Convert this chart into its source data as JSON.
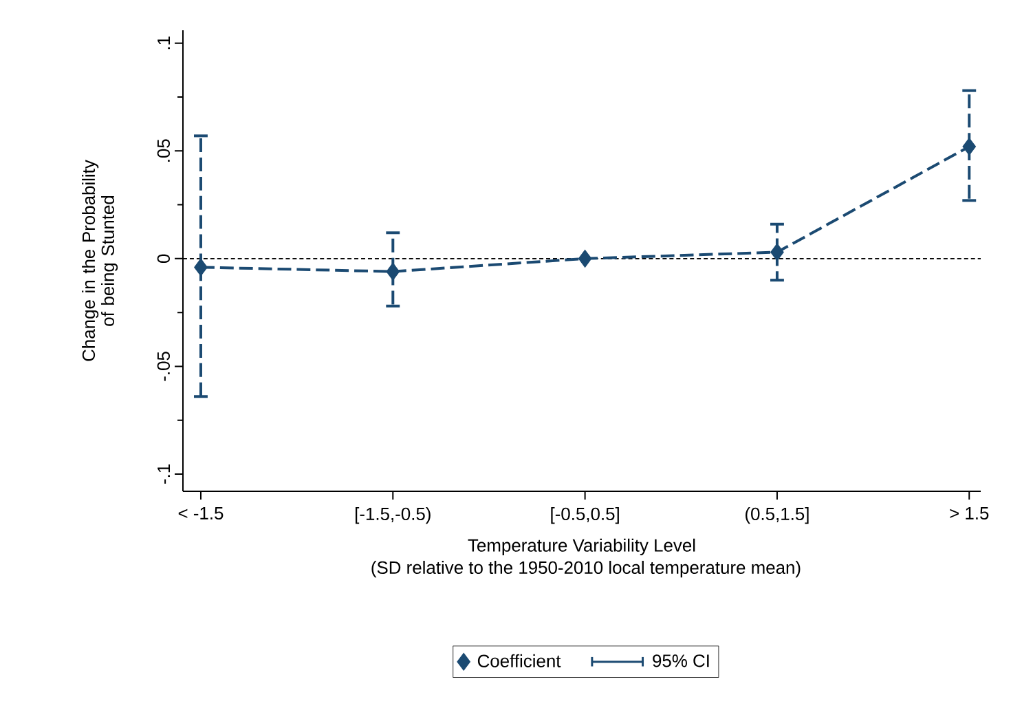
{
  "chart_data": {
    "type": "line",
    "xlabel": "Temperature Variability Level",
    "ylabel": "Change in the Probability of being Stunted",
    "annotations": [
      "(SD relative to the 1950-2010 local temperature mean)",
      "95% CI"
    ],
    "categories": [
      "< -1.5",
      "[-1.5,-0.5)",
      "[-0.5,0.5]",
      "(0.5,1.5]",
      "> 1.5"
    ],
    "series": [
      {
        "name": "Coefficient",
        "type": "line",
        "color": "#1b4a72",
        "marker": "diamond",
        "line_style": "dashed",
        "values": [
          -0.004,
          -0.006,
          0,
          0.003,
          0.052
        ],
        "errors": [
          [
            -0.064,
            0.057
          ],
          [
            -0.022,
            0.012
          ],
          null,
          [
            -0.01,
            0.016
          ],
          [
            0.027,
            0.078
          ]
        ]
      }
    ],
    "ylim": [
      -0.108,
      0.106
    ],
    "yticks": [
      {
        "value": -0.1,
        "label": "-.1"
      },
      {
        "value": -0.05,
        "label": "-.05"
      },
      0,
      {
        "value": 0.05,
        "label": ".05"
      },
      {
        "value": 0.1,
        "label": ".1"
      }
    ],
    "ref_lines": [
      {
        "axis": "y",
        "value": 0,
        "color": "#000000",
        "line_style": "dotted"
      }
    ],
    "grid": false,
    "legend": "bottom"
  }
}
